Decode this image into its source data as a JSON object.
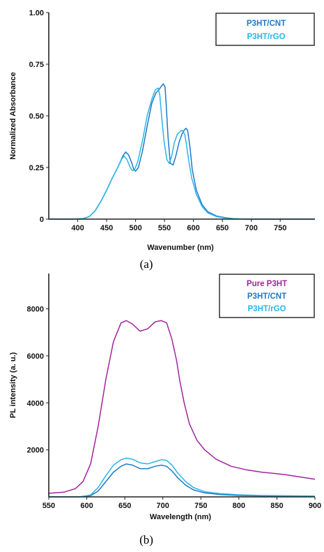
{
  "chart_data": [
    {
      "type": "line",
      "panel_label": "(a)",
      "xlabel": "Wavenumber (nm)",
      "ylabel": "Normalized Absorbance",
      "xlim": [
        350,
        810
      ],
      "ylim": [
        0,
        1.0
      ],
      "x_ticks": [
        400,
        450,
        500,
        550,
        600,
        650,
        700,
        750
      ],
      "y_ticks": [
        0,
        0.25,
        0.5,
        0.75,
        1.0
      ],
      "y_tick_labels": [
        "0",
        "0.25",
        "0.50",
        "0.75",
        "1.00"
      ],
      "grid": false,
      "legend_position": "top-right",
      "series": [
        {
          "name": "P3HT/CNT",
          "color": "#1f78c8",
          "x": [
            350,
            390,
            410,
            420,
            430,
            440,
            450,
            460,
            470,
            478,
            483,
            488,
            493,
            497,
            500,
            505,
            512,
            520,
            528,
            535,
            540,
            545,
            548,
            551,
            553,
            556,
            560,
            565,
            570,
            575,
            580,
            584,
            587,
            590,
            594,
            598,
            605,
            615,
            625,
            640,
            655,
            670,
            690,
            810
          ],
          "y": [
            0,
            0,
            0.003,
            0.012,
            0.04,
            0.085,
            0.14,
            0.2,
            0.255,
            0.305,
            0.325,
            0.31,
            0.275,
            0.24,
            0.232,
            0.25,
            0.33,
            0.45,
            0.56,
            0.61,
            0.625,
            0.645,
            0.655,
            0.64,
            0.55,
            0.4,
            0.27,
            0.262,
            0.31,
            0.37,
            0.41,
            0.43,
            0.44,
            0.43,
            0.35,
            0.24,
            0.14,
            0.07,
            0.035,
            0.015,
            0.007,
            0.002,
            0,
            0
          ]
        },
        {
          "name": "P3HT/rGO",
          "color": "#29b6e6",
          "x": [
            350,
            390,
            410,
            420,
            430,
            440,
            450,
            460,
            470,
            476,
            480,
            485,
            490,
            494,
            498,
            504,
            512,
            520,
            528,
            534,
            539,
            542,
            545,
            549,
            554,
            558,
            562,
            567,
            572,
            577,
            581,
            585,
            588,
            592,
            597,
            605,
            615,
            625,
            640,
            655,
            670,
            690,
            810
          ],
          "y": [
            0,
            0,
            0.003,
            0.012,
            0.04,
            0.085,
            0.14,
            0.2,
            0.255,
            0.29,
            0.305,
            0.29,
            0.255,
            0.235,
            0.238,
            0.28,
            0.38,
            0.5,
            0.58,
            0.625,
            0.635,
            0.6,
            0.5,
            0.38,
            0.29,
            0.27,
            0.3,
            0.37,
            0.41,
            0.425,
            0.43,
            0.41,
            0.36,
            0.28,
            0.2,
            0.12,
            0.06,
            0.03,
            0.012,
            0.005,
            0.002,
            0,
            0
          ]
        }
      ]
    },
    {
      "type": "line",
      "panel_label": "(b)",
      "xlabel": "Wavelength (nm)",
      "ylabel": "PL intensity (a. u.)",
      "xlim": [
        550,
        900
      ],
      "ylim": [
        0,
        9500
      ],
      "x_ticks": [
        550,
        600,
        650,
        700,
        750,
        800,
        850,
        900
      ],
      "y_ticks": [
        2000,
        4000,
        6000,
        8000
      ],
      "y_tick_labels": [
        "2000",
        "4000",
        "6000",
        "8000"
      ],
      "grid": false,
      "legend_position": "top-right",
      "series": [
        {
          "name": "Pure P3HT",
          "color": "#a0259a",
          "x": [
            550,
            570,
            585,
            595,
            605,
            615,
            625,
            635,
            645,
            652,
            660,
            670,
            680,
            690,
            698,
            705,
            712,
            718,
            722,
            728,
            735,
            745,
            755,
            770,
            790,
            810,
            830,
            860,
            880,
            900
          ],
          "y": [
            150,
            200,
            350,
            650,
            1400,
            3000,
            5000,
            6600,
            7400,
            7500,
            7350,
            7050,
            7150,
            7450,
            7500,
            7400,
            6700,
            5800,
            5000,
            4000,
            3100,
            2400,
            2000,
            1600,
            1300,
            1150,
            1050,
            950,
            850,
            750
          ]
        },
        {
          "name": "P3HT/CNT",
          "color": "#1f78c8",
          "x": [
            550,
            590,
            605,
            615,
            625,
            635,
            645,
            652,
            660,
            670,
            680,
            690,
            698,
            705,
            712,
            720,
            730,
            740,
            755,
            775,
            800,
            830,
            860,
            900
          ],
          "y": [
            0,
            0,
            50,
            250,
            650,
            1050,
            1300,
            1400,
            1350,
            1200,
            1200,
            1300,
            1350,
            1300,
            1100,
            800,
            500,
            300,
            170,
            100,
            60,
            40,
            30,
            20
          ]
        },
        {
          "name": "P3HT/rGO",
          "color": "#29b6e6",
          "x": [
            550,
            590,
            605,
            615,
            625,
            635,
            645,
            652,
            660,
            670,
            680,
            690,
            698,
            705,
            712,
            720,
            730,
            740,
            755,
            775,
            800,
            830,
            860,
            900
          ],
          "y": [
            0,
            0,
            80,
            400,
            900,
            1350,
            1580,
            1650,
            1600,
            1450,
            1400,
            1500,
            1580,
            1550,
            1350,
            1000,
            650,
            400,
            220,
            140,
            90,
            60,
            50,
            40
          ]
        }
      ]
    }
  ]
}
